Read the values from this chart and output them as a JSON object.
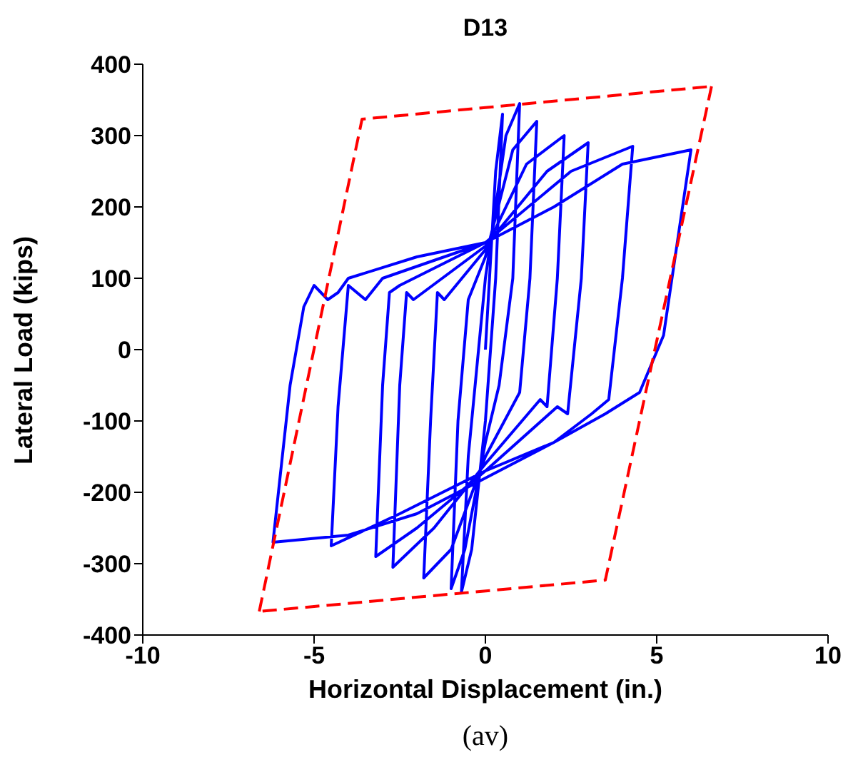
{
  "chart_data": {
    "type": "line",
    "title": "D13",
    "xlabel": "Horizontal Displacement (in.)",
    "ylabel": "Lateral Load (kips)",
    "annotations": [
      "(av)"
    ],
    "xlim": [
      -10,
      10
    ],
    "ylim": [
      -400,
      400
    ],
    "xticks": [
      -10,
      -5,
      0,
      5,
      10
    ],
    "yticks": [
      -400,
      -300,
      -200,
      -100,
      0,
      100,
      200,
      300,
      400
    ],
    "marker": "none",
    "series": [
      {
        "color": "#0000ff",
        "line_style": "solid",
        "x": [
          0,
          0.3,
          0.5,
          0.3,
          0,
          -0.4,
          -0.7,
          -0.5,
          0,
          0.6,
          1.0,
          0.8,
          0.4,
          0,
          -0.6,
          -1.0,
          -0.8,
          -0.5,
          0,
          0.8,
          1.5,
          1.3,
          1.0,
          0,
          -1.0,
          -1.8,
          -1.6,
          -1.4,
          -1.2,
          0,
          1.2,
          2.3,
          2.1,
          1.8,
          1.6,
          0,
          -1.5,
          -2.7,
          -2.5,
          -2.3,
          -2.1,
          0,
          1.8,
          3.0,
          2.8,
          2.4,
          2.1,
          0,
          -2.0,
          -3.2,
          -3.0,
          -2.8,
          -2.5,
          0,
          2.5,
          4.3,
          4.0,
          3.6,
          3.1,
          2.0,
          0,
          -2.5,
          -4.5,
          -4.3,
          -4.0,
          -3.5,
          -3.0,
          0,
          2.0,
          4.0,
          6.0,
          5.2,
          4.5,
          4.0,
          3.5,
          2.0,
          0,
          -2.0,
          -4.0,
          -6.2,
          -5.7,
          -5.3,
          -5.0,
          -4.6,
          -4.3,
          -4.0,
          -2.0,
          0
        ],
        "values": [
          0,
          250,
          330,
          100,
          -100,
          -280,
          -340,
          -150,
          100,
          300,
          345,
          100,
          -50,
          -130,
          -280,
          -335,
          -100,
          70,
          130,
          280,
          320,
          100,
          -60,
          -150,
          -280,
          -320,
          -100,
          80,
          70,
          140,
          260,
          300,
          100,
          -80,
          -70,
          -160,
          -250,
          -305,
          -50,
          80,
          70,
          145,
          250,
          290,
          100,
          -90,
          -80,
          -170,
          -250,
          -290,
          -50,
          80,
          90,
          150,
          250,
          285,
          100,
          -70,
          -90,
          -130,
          -170,
          -230,
          -275,
          -80,
          90,
          70,
          100,
          150,
          200,
          260,
          280,
          20,
          -60,
          -75,
          -90,
          -130,
          -180,
          -230,
          -260,
          -270,
          -50,
          60,
          90,
          70,
          80,
          100,
          130,
          150
        ]
      },
      {
        "color": "#ff0000",
        "line_style": "dashed",
        "x": [
          -6.6,
          -3.6,
          6.6
        ],
        "values": [
          -367,
          323,
          369
        ]
      },
      {
        "color": "#ff0000",
        "line_style": "dashed",
        "x": [
          6.6,
          3.5,
          -6.6
        ],
        "values": [
          369,
          -323,
          -367
        ]
      }
    ],
    "grid": false,
    "legend": false
  }
}
